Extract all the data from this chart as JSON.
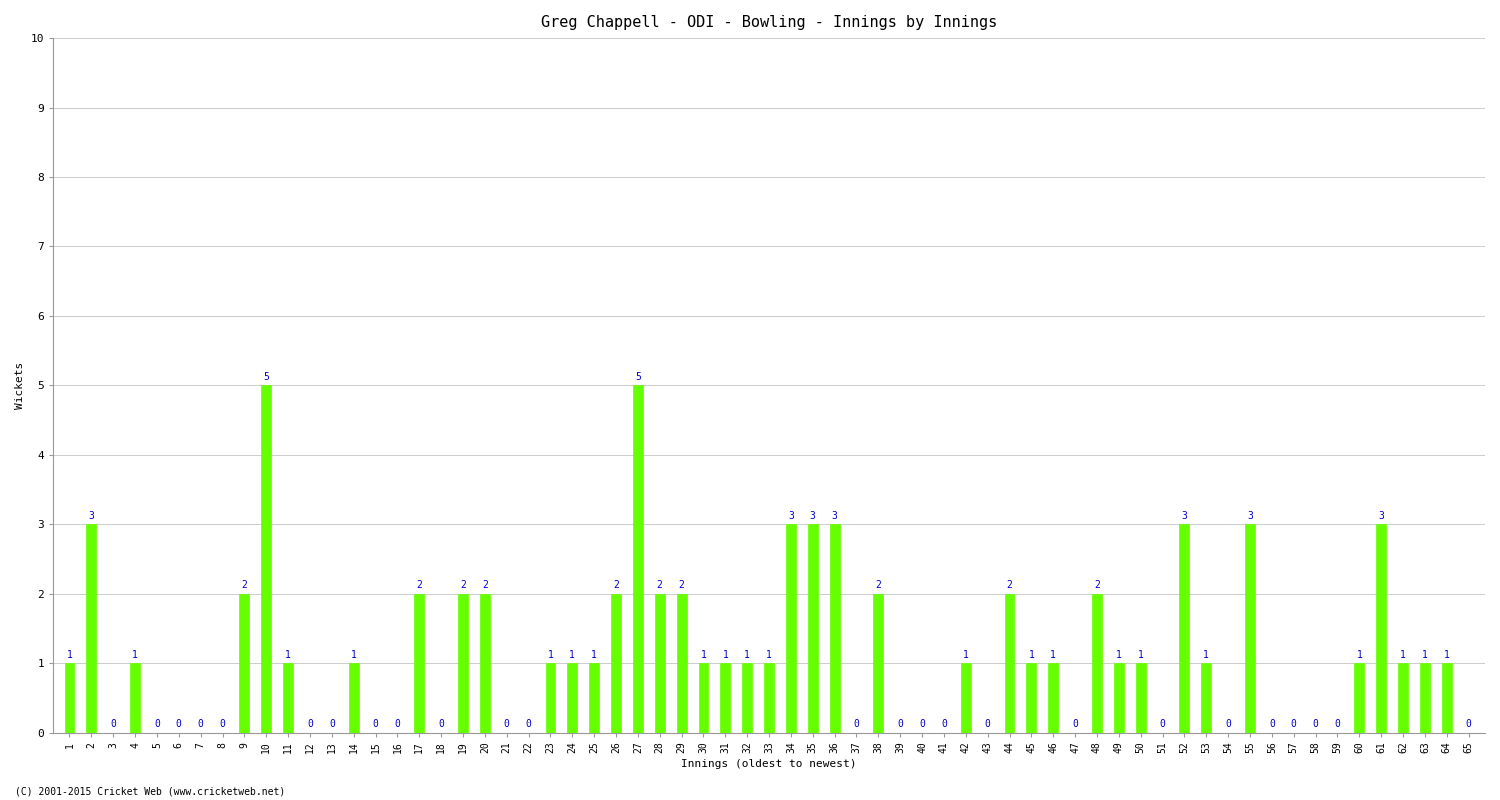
{
  "title": "Greg Chappell - ODI - Bowling - Innings by Innings",
  "xlabel": "Innings (oldest to newest)",
  "ylabel": "Wickets",
  "background_color": "#ffffff",
  "bar_color": "#66ff00",
  "label_color": "#0000cc",
  "ylim": [
    0,
    10
  ],
  "yticks": [
    0,
    1,
    2,
    3,
    4,
    5,
    6,
    7,
    8,
    9,
    10
  ],
  "innings": [
    1,
    2,
    3,
    4,
    5,
    6,
    7,
    8,
    9,
    10,
    11,
    12,
    13,
    14,
    15,
    16,
    17,
    18,
    19,
    20,
    21,
    22,
    23,
    24,
    25,
    26,
    27,
    28,
    29,
    30,
    31,
    32,
    33,
    34,
    35,
    36,
    37,
    38,
    39,
    40,
    41,
    42,
    43,
    44,
    45,
    46,
    47,
    48,
    49,
    50,
    51,
    52,
    53,
    54,
    55,
    56,
    57,
    58,
    59,
    60,
    61,
    62,
    63,
    64,
    65
  ],
  "wickets": [
    1,
    3,
    0,
    1,
    0,
    0,
    0,
    0,
    2,
    5,
    1,
    0,
    0,
    1,
    0,
    0,
    2,
    0,
    2,
    2,
    0,
    0,
    1,
    1,
    1,
    2,
    5,
    2,
    2,
    1,
    1,
    1,
    1,
    3,
    3,
    3,
    0,
    2,
    0,
    0,
    0,
    1,
    0,
    2,
    1,
    1,
    0,
    2,
    1,
    1,
    0,
    3,
    1,
    0,
    3,
    0,
    0,
    0,
    0,
    1,
    3,
    1,
    1,
    1,
    0
  ],
  "title_fontsize": 11,
  "axis_label_fontsize": 8,
  "tick_fontsize": 7,
  "value_label_fontsize": 7,
  "bar_width": 0.45,
  "footer": "(C) 2001-2015 Cricket Web (www.cricketweb.net)",
  "grid_color": "#cccccc",
  "spine_color": "#999999"
}
